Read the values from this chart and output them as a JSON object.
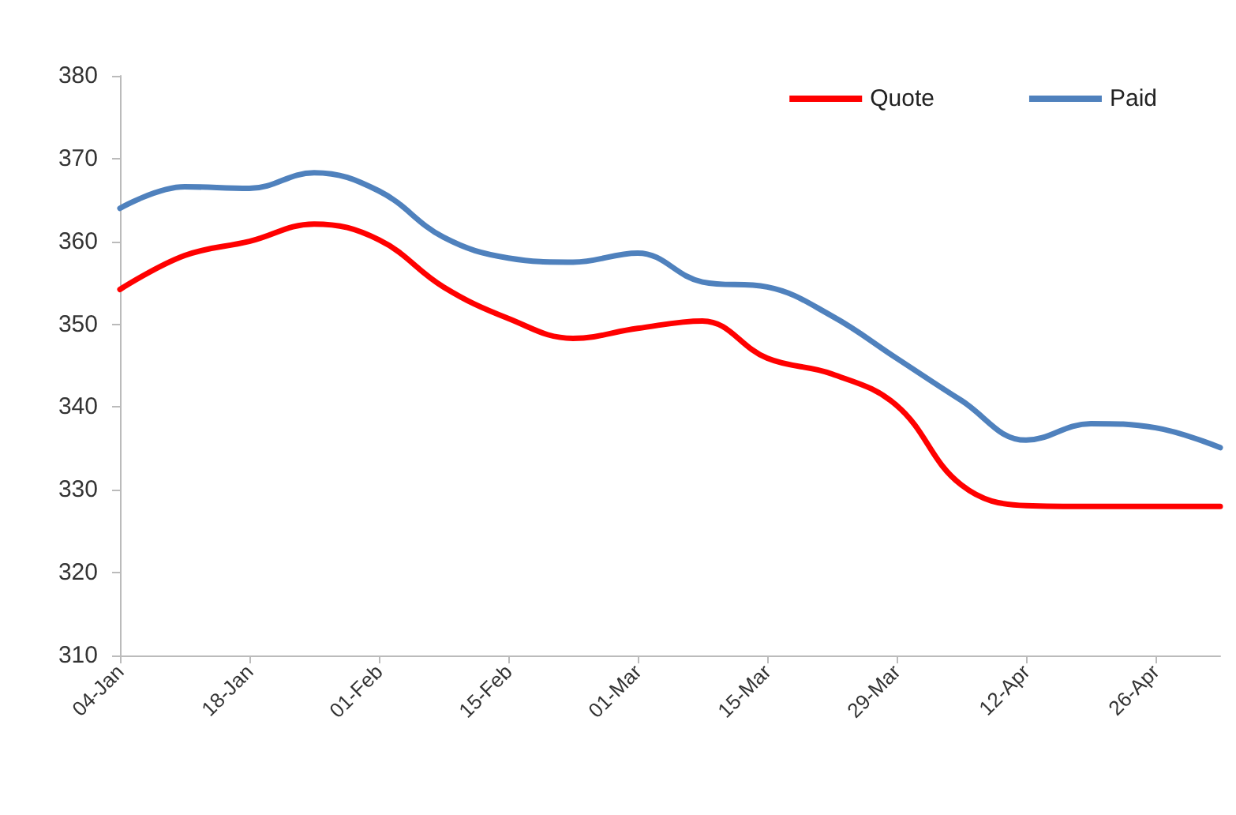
{
  "chart_data": {
    "type": "line",
    "categories": [
      "04-Jan",
      null,
      "18-Jan",
      null,
      "01-Feb",
      null,
      "15-Feb",
      null,
      "01-Mar",
      null,
      "15-Mar",
      null,
      "29-Mar",
      null,
      "12-Apr",
      null,
      "26-Apr",
      null
    ],
    "series": [
      {
        "name": "Quote",
        "color": "#ff0000",
        "values": [
          354.2,
          358.3,
          360.0,
          362.1,
          360.2,
          354.5,
          350.7,
          348.3,
          349.5,
          350.4,
          345.9,
          344.0,
          340.2,
          330.6,
          328.1,
          328.0,
          328.0,
          328.0
        ]
      },
      {
        "name": "Paid",
        "color": "#4f81bd",
        "values": [
          364.0,
          366.6,
          366.4,
          368.3,
          366.1,
          360.5,
          358.0,
          357.5,
          358.6,
          355.1,
          354.5,
          351.0,
          345.9,
          340.8,
          336.0,
          338.0,
          337.5,
          335.1
        ]
      }
    ],
    "ylim": [
      310,
      380
    ],
    "yticks": [
      310,
      320,
      330,
      340,
      350,
      360,
      370,
      380
    ],
    "grid": false,
    "legend": "top right",
    "marker": "none",
    "line_style": "solid"
  }
}
